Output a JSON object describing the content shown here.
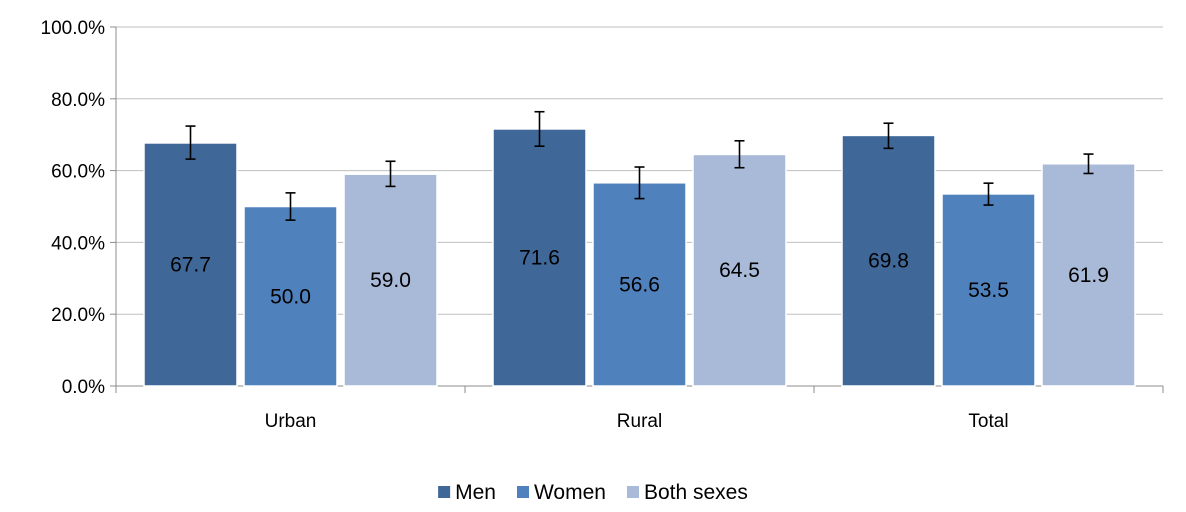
{
  "chart_data": {
    "type": "bar",
    "title": "",
    "xlabel": "",
    "ylabel": "",
    "categories": [
      "Urban",
      "Rural",
      "Total"
    ],
    "ylim": [
      0,
      100
    ],
    "yticks": [
      "0.0%",
      "20.0%",
      "40.0%",
      "60.0%",
      "80.0%",
      "100.0%"
    ],
    "ytick_values": [
      0,
      20,
      40,
      60,
      80,
      100
    ],
    "grid": true,
    "legend_position": "bottom",
    "series": [
      {
        "name": "Men",
        "color": "#3f6899",
        "values": [
          67.7,
          71.6,
          69.8
        ],
        "labels": [
          "67.7",
          "71.6",
          "69.8"
        ],
        "error_low": [
          63.2,
          66.8,
          66.2
        ],
        "error_high": [
          72.4,
          76.4,
          73.2
        ]
      },
      {
        "name": "Women",
        "color": "#4f81bd",
        "values": [
          50.0,
          56.6,
          53.5
        ],
        "labels": [
          "50.0",
          "56.6",
          "53.5"
        ],
        "error_low": [
          46.2,
          52.2,
          50.4
        ],
        "error_high": [
          53.8,
          61.0,
          56.5
        ]
      },
      {
        "name": "Both sexes",
        "color": "#a9b9d8",
        "values": [
          59.0,
          64.5,
          61.9
        ],
        "labels": [
          "59.0",
          "64.5",
          "61.9"
        ],
        "error_low": [
          55.6,
          60.8,
          59.2
        ],
        "error_high": [
          62.6,
          68.3,
          64.6
        ]
      }
    ]
  }
}
